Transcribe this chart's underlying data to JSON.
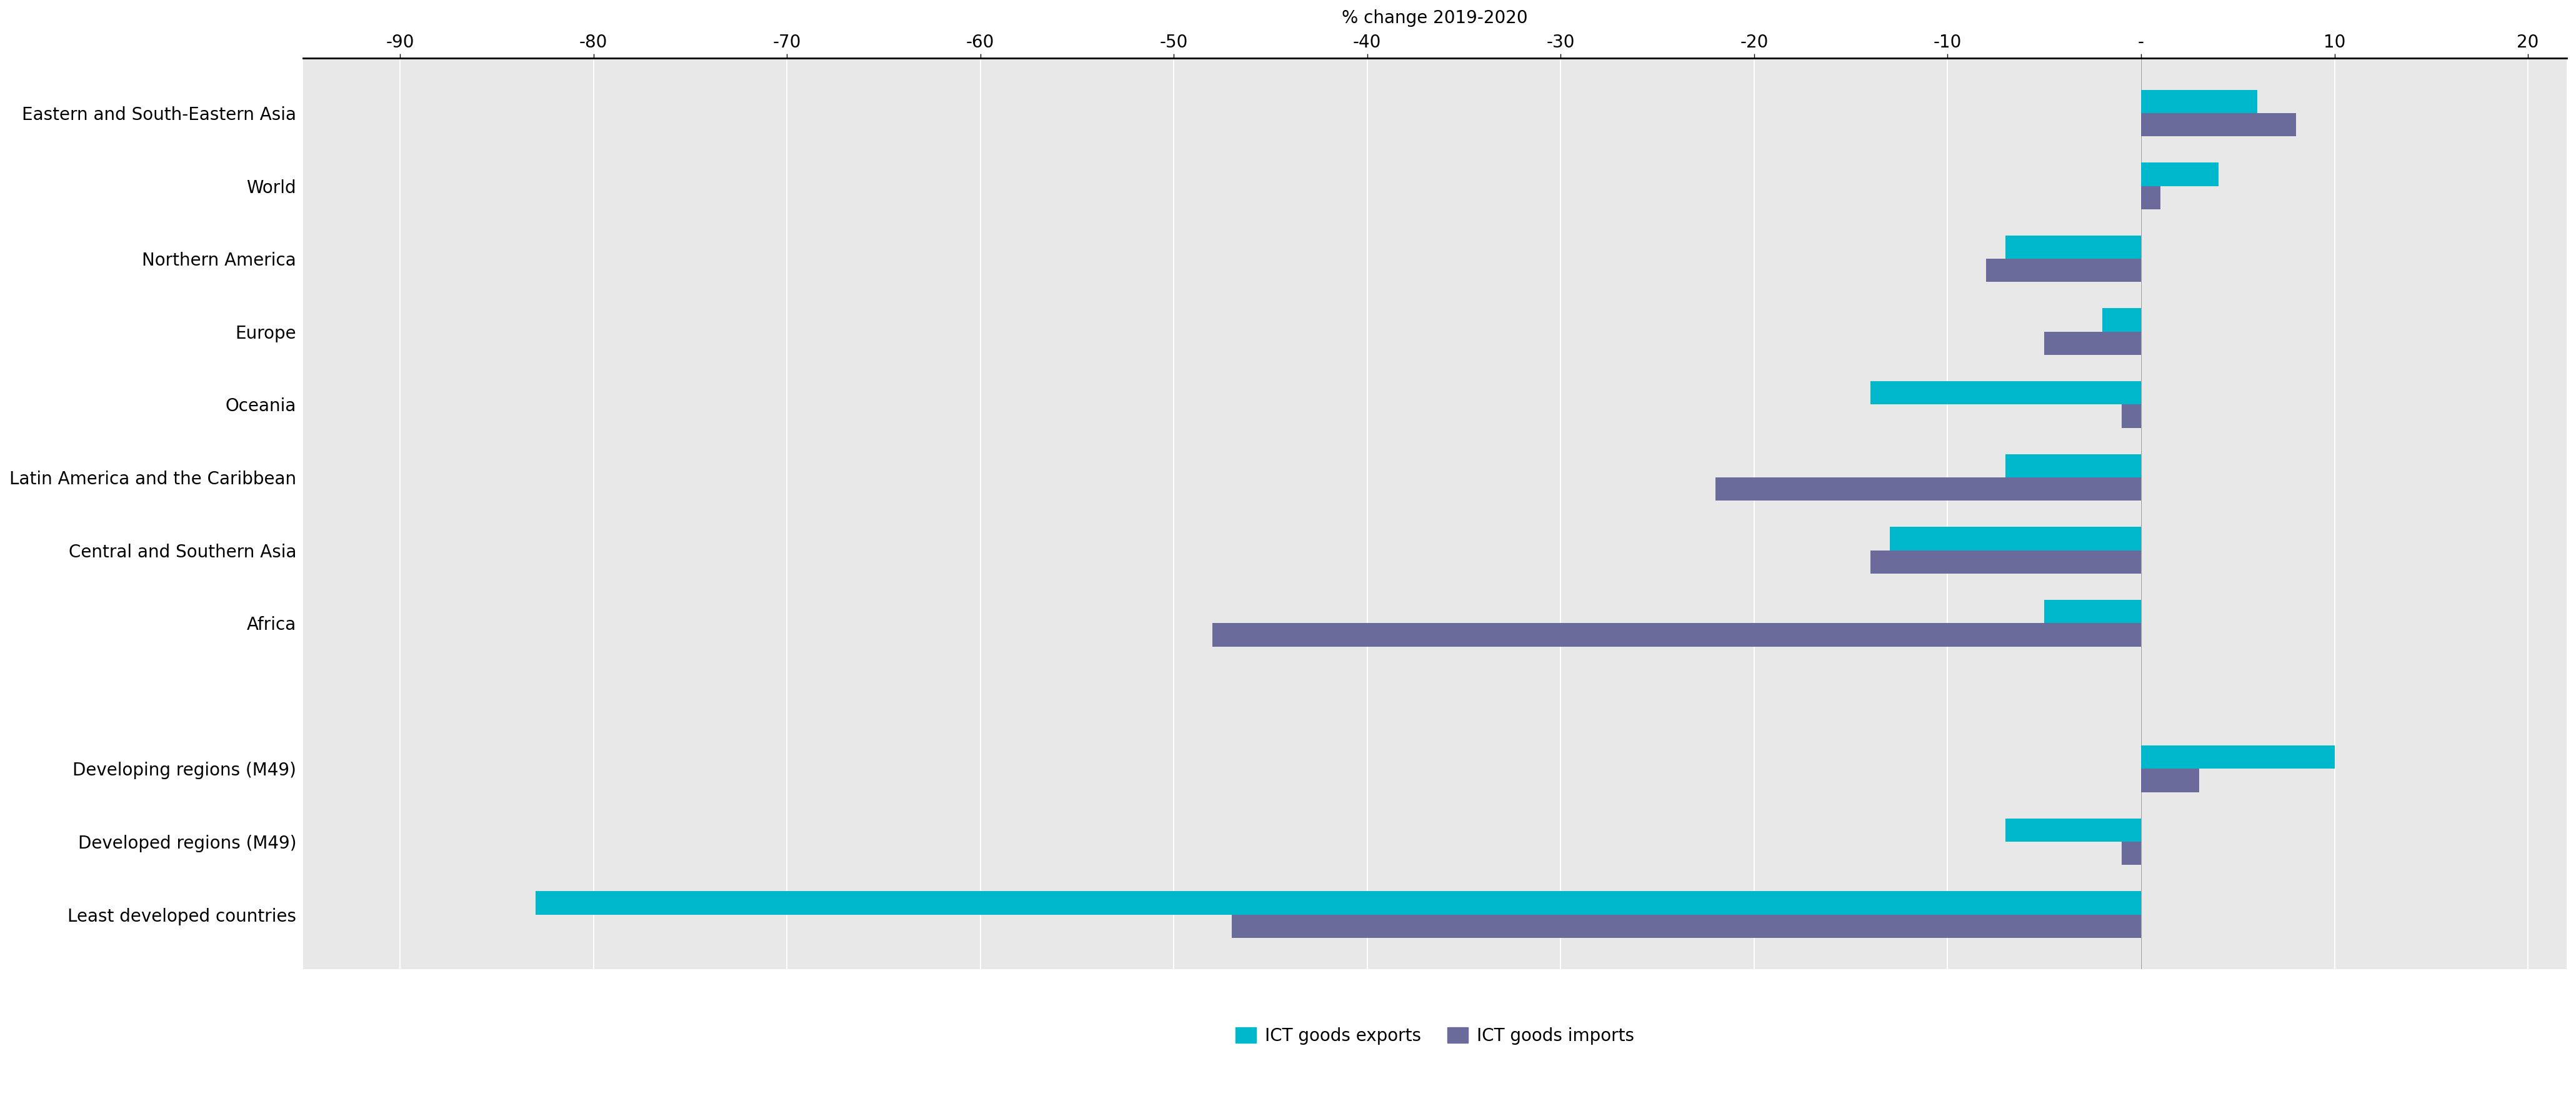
{
  "categories": [
    "Eastern and South-Eastern Asia",
    "World",
    "Northern America",
    "Europe",
    "Oceania",
    "Latin America and the Caribbean",
    "Central and Southern Asia",
    "Africa",
    "",
    "Developing regions (M49)",
    "Developed regions (M49)",
    "Least developed countries"
  ],
  "exports": [
    6,
    4,
    -7,
    -2,
    -14,
    -7,
    -13,
    -5,
    null,
    10,
    -7,
    -83
  ],
  "imports": [
    8,
    1,
    -8,
    -5,
    -1,
    -22,
    -14,
    -48,
    null,
    3,
    -1,
    -47
  ],
  "export_color": "#00b8cc",
  "import_color": "#6b6b9b",
  "background_color": "#e8e8e8",
  "plot_bg_color": "#e8e8e8",
  "xlim": [
    -95,
    22
  ],
  "xticks": [
    -90,
    -80,
    -70,
    -60,
    -50,
    -40,
    -30,
    -20,
    -10,
    0,
    10,
    20
  ],
  "xlabel": "% change 2019-2020",
  "legend_export": "ICT goods exports",
  "legend_import": "ICT goods imports",
  "bar_height": 0.32,
  "tick_fontsize": 20,
  "label_fontsize": 20,
  "xlabel_fontsize": 20
}
